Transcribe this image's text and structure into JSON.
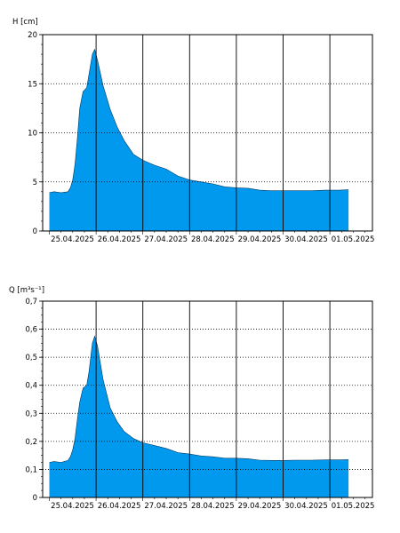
{
  "chart_data": [
    {
      "type": "area",
      "ylabel": "H [cm]",
      "xlabel": "",
      "ylim": [
        0,
        20
      ],
      "yticks": [
        0,
        5,
        10,
        15,
        20
      ],
      "ytick_labels": [
        "0",
        "5",
        "10",
        "15",
        "20"
      ],
      "minor_ytick_step": 1,
      "grid": true,
      "fill_color": "#0099ee",
      "x_days": [
        "25.04.2025",
        "26.04.2025",
        "27.04.2025",
        "28.04.2025",
        "29.04.2025",
        "30.04.2025",
        "01.05.2025"
      ],
      "series": [
        {
          "points": [
            [
              0.0,
              3.9
            ],
            [
              0.1,
              4.0
            ],
            [
              0.25,
              3.9
            ],
            [
              0.4,
              4.0
            ],
            [
              0.45,
              4.4
            ],
            [
              0.5,
              5.2
            ],
            [
              0.55,
              6.8
            ],
            [
              0.6,
              9.5
            ],
            [
              0.65,
              12.5
            ],
            [
              0.72,
              14.2
            ],
            [
              0.8,
              14.6
            ],
            [
              0.85,
              16.0
            ],
            [
              0.92,
              18.0
            ],
            [
              0.97,
              18.5
            ],
            [
              1.03,
              17.4
            ],
            [
              1.15,
              14.8
            ],
            [
              1.3,
              12.4
            ],
            [
              1.45,
              10.6
            ],
            [
              1.6,
              9.2
            ],
            [
              1.8,
              7.8
            ],
            [
              2.0,
              7.2
            ],
            [
              2.25,
              6.7
            ],
            [
              2.5,
              6.3
            ],
            [
              2.75,
              5.6
            ],
            [
              3.0,
              5.2
            ],
            [
              3.25,
              5.0
            ],
            [
              3.5,
              4.8
            ],
            [
              3.75,
              4.5
            ],
            [
              4.0,
              4.4
            ],
            [
              4.25,
              4.35
            ],
            [
              4.5,
              4.15
            ],
            [
              4.75,
              4.1
            ],
            [
              5.0,
              4.1
            ],
            [
              5.3,
              4.1
            ],
            [
              5.6,
              4.1
            ],
            [
              5.9,
              4.15
            ],
            [
              6.2,
              4.15
            ],
            [
              6.4,
              4.2
            ]
          ]
        }
      ]
    },
    {
      "type": "area",
      "ylabel": "Q [m³s⁻¹]",
      "xlabel": "",
      "ylim": [
        0,
        0.7
      ],
      "yticks": [
        0,
        0.1,
        0.2,
        0.3,
        0.4,
        0.5,
        0.6,
        0.7
      ],
      "ytick_labels": [
        "0",
        "0,1",
        "0,2",
        "0,3",
        "0,4",
        "0,5",
        "0,6",
        "0,7"
      ],
      "minor_ytick_step": 0.025,
      "grid": true,
      "fill_color": "#0099ee",
      "x_days": [
        "25.04.2025",
        "26.04.2025",
        "27.04.2025",
        "28.04.2025",
        "29.04.2025",
        "30.04.2025",
        "01.05.2025"
      ],
      "series": [
        {
          "points": [
            [
              0.0,
              0.125
            ],
            [
              0.1,
              0.128
            ],
            [
              0.25,
              0.125
            ],
            [
              0.4,
              0.132
            ],
            [
              0.45,
              0.145
            ],
            [
              0.5,
              0.17
            ],
            [
              0.55,
              0.21
            ],
            [
              0.6,
              0.28
            ],
            [
              0.65,
              0.34
            ],
            [
              0.72,
              0.39
            ],
            [
              0.8,
              0.4
            ],
            [
              0.85,
              0.45
            ],
            [
              0.92,
              0.55
            ],
            [
              0.97,
              0.575
            ],
            [
              1.03,
              0.54
            ],
            [
              1.15,
              0.42
            ],
            [
              1.3,
              0.32
            ],
            [
              1.45,
              0.27
            ],
            [
              1.6,
              0.235
            ],
            [
              1.8,
              0.21
            ],
            [
              2.0,
              0.195
            ],
            [
              2.25,
              0.185
            ],
            [
              2.5,
              0.175
            ],
            [
              2.75,
              0.16
            ],
            [
              3.0,
              0.155
            ],
            [
              3.25,
              0.148
            ],
            [
              3.5,
              0.145
            ],
            [
              3.75,
              0.14
            ],
            [
              4.0,
              0.14
            ],
            [
              4.25,
              0.138
            ],
            [
              4.5,
              0.133
            ],
            [
              4.75,
              0.132
            ],
            [
              5.0,
              0.132
            ],
            [
              5.3,
              0.133
            ],
            [
              5.6,
              0.133
            ],
            [
              5.9,
              0.134
            ],
            [
              6.2,
              0.134
            ],
            [
              6.4,
              0.135
            ]
          ]
        }
      ]
    }
  ]
}
